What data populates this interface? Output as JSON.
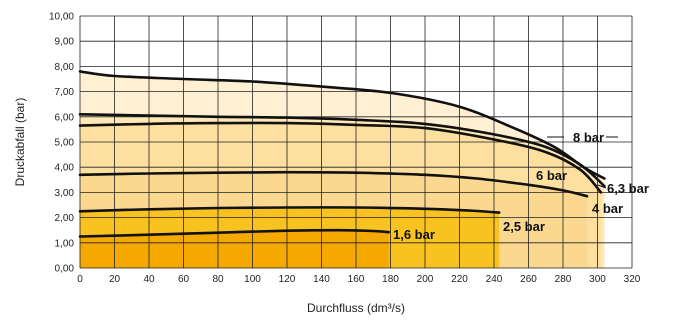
{
  "chart_data": {
    "type": "line",
    "title": "",
    "xlabel": "Durchfluss (dm³/s)",
    "ylabel": "Druckabfall (bar)",
    "xlim": [
      0,
      320
    ],
    "ylim": [
      0,
      10
    ],
    "x_ticks": [
      0,
      20,
      40,
      60,
      80,
      100,
      120,
      140,
      160,
      180,
      200,
      220,
      240,
      260,
      280,
      300,
      320
    ],
    "y_ticks": [
      "0,00",
      "1,00",
      "2,00",
      "3,00",
      "4,00",
      "5,00",
      "6,00",
      "7,00",
      "8,00",
      "9,00",
      "10,00"
    ],
    "grid": true,
    "series": [
      {
        "name": "1,6 bar",
        "fill": "#f5a800",
        "points": [
          [
            0,
            1.25
          ],
          [
            40,
            1.32
          ],
          [
            80,
            1.4
          ],
          [
            120,
            1.48
          ],
          [
            150,
            1.5
          ],
          [
            170,
            1.47
          ],
          [
            179,
            1.42
          ]
        ]
      },
      {
        "name": "2,5 bar",
        "fill": "#f8c320",
        "points": [
          [
            0,
            2.25
          ],
          [
            40,
            2.33
          ],
          [
            80,
            2.38
          ],
          [
            120,
            2.4
          ],
          [
            160,
            2.4
          ],
          [
            200,
            2.35
          ],
          [
            225,
            2.28
          ],
          [
            243,
            2.2
          ]
        ]
      },
      {
        "name": "4 bar",
        "fill": "#fad890",
        "points": [
          [
            0,
            3.7
          ],
          [
            40,
            3.75
          ],
          [
            80,
            3.78
          ],
          [
            120,
            3.8
          ],
          [
            160,
            3.78
          ],
          [
            200,
            3.7
          ],
          [
            230,
            3.55
          ],
          [
            260,
            3.3
          ],
          [
            280,
            3.08
          ],
          [
            294,
            2.85
          ]
        ]
      },
      {
        "name": "6 bar",
        "fill": "#fde0a0",
        "points": [
          [
            0,
            5.65
          ],
          [
            40,
            5.72
          ],
          [
            80,
            5.75
          ],
          [
            120,
            5.75
          ],
          [
            160,
            5.68
          ],
          [
            200,
            5.55
          ],
          [
            240,
            5.1
          ],
          [
            270,
            4.6
          ],
          [
            290,
            3.9
          ],
          [
            302,
            3.0
          ]
        ]
      },
      {
        "name": "6,3 bar",
        "fill": "#fde8b8",
        "points": [
          [
            0,
            6.1
          ],
          [
            40,
            6.05
          ],
          [
            80,
            6.0
          ],
          [
            120,
            5.97
          ],
          [
            160,
            5.88
          ],
          [
            200,
            5.72
          ],
          [
            240,
            5.3
          ],
          [
            270,
            4.8
          ],
          [
            290,
            4.1
          ],
          [
            304,
            3.25
          ]
        ]
      },
      {
        "name": "8 bar",
        "fill": "#fff0d4",
        "points": [
          [
            0,
            7.8
          ],
          [
            20,
            7.62
          ],
          [
            60,
            7.5
          ],
          [
            100,
            7.4
          ],
          [
            140,
            7.2
          ],
          [
            180,
            6.95
          ],
          [
            220,
            6.4
          ],
          [
            250,
            5.6
          ],
          [
            275,
            4.8
          ],
          [
            292,
            4.0
          ],
          [
            304,
            3.55
          ]
        ]
      }
    ],
    "labels": [
      {
        "text": "1,6 bar",
        "series": "1,6 bar"
      },
      {
        "text": "2,5 bar",
        "series": "2,5 bar"
      },
      {
        "text": "4 bar",
        "series": "4 bar"
      },
      {
        "text": "6 bar",
        "series": "6 bar"
      },
      {
        "text": "6,3 bar",
        "series": "6,3 bar"
      },
      {
        "text": "8 bar",
        "series": "8 bar"
      }
    ]
  }
}
